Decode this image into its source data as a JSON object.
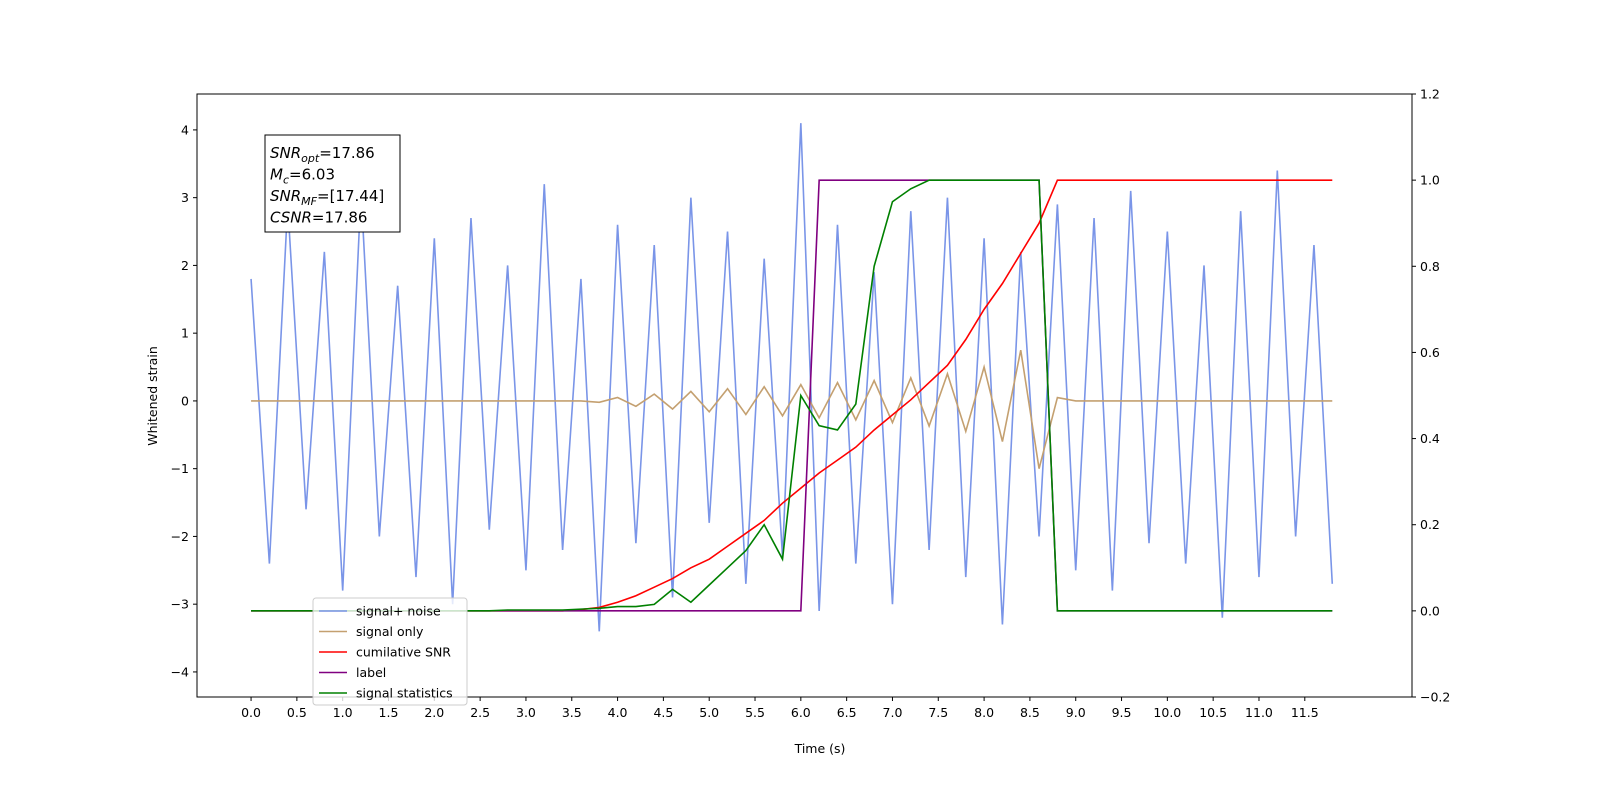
{
  "chart_data": {
    "type": "line",
    "xlabel": "Time (s)",
    "ylabel": "Whitened strain",
    "xlim": [
      -0.59,
      12.67
    ],
    "ylim": [
      -4.37,
      4.53
    ],
    "y2lim": [
      -0.2,
      1.2
    ],
    "xticks": [
      {
        "value": 0,
        "label": "0.0"
      },
      {
        "value": 0.5,
        "label": "0.5"
      },
      {
        "value": 1,
        "label": "1.0"
      },
      {
        "value": 1.5,
        "label": "1.5"
      },
      {
        "value": 2,
        "label": "2.0"
      },
      {
        "value": 2.5,
        "label": "2.5"
      },
      {
        "value": 3,
        "label": "3.0"
      },
      {
        "value": 3.5,
        "label": "3.5"
      },
      {
        "value": 4,
        "label": "4.0"
      },
      {
        "value": 4.5,
        "label": "4.5"
      },
      {
        "value": 5,
        "label": "5.0"
      },
      {
        "value": 5.5,
        "label": "5.5"
      },
      {
        "value": 6,
        "label": "6.0"
      },
      {
        "value": 6.5,
        "label": "6.5"
      },
      {
        "value": 7,
        "label": "7.0"
      },
      {
        "value": 7.5,
        "label": "7.5"
      },
      {
        "value": 8,
        "label": "8.0"
      },
      {
        "value": 8.5,
        "label": "8.5"
      },
      {
        "value": 9,
        "label": "9.0"
      },
      {
        "value": 9.5,
        "label": "9.5"
      },
      {
        "value": 10,
        "label": "10.0"
      },
      {
        "value": 10.5,
        "label": "10.5"
      },
      {
        "value": 11,
        "label": "11.0"
      },
      {
        "value": 11.5,
        "label": "11.5"
      }
    ],
    "yticks": [
      {
        "value": -4,
        "label": "−4"
      },
      {
        "value": -3,
        "label": "−3"
      },
      {
        "value": -2,
        "label": "−2"
      },
      {
        "value": -1,
        "label": "−1"
      },
      0,
      1,
      2,
      3,
      4
    ],
    "y2ticks": [
      {
        "value": -0.2,
        "label": "−0.2"
      },
      {
        "value": 0,
        "label": "0.0"
      },
      {
        "value": 0.2,
        "label": "0.2"
      },
      {
        "value": 0.4,
        "label": "0.4"
      },
      {
        "value": 0.6,
        "label": "0.6"
      },
      {
        "value": 0.8,
        "label": "0.8"
      },
      {
        "value": 1,
        "label": "1.0"
      },
      {
        "value": 1.2,
        "label": "1.2"
      }
    ],
    "legend": "lower left",
    "annotations": [
      {
        "symbol": "SNR",
        "sub": "opt",
        "text": "=17.86"
      },
      {
        "symbol": "M",
        "sub": "c",
        "text": "=6.03"
      },
      {
        "symbol": "SNR",
        "sub": "MF",
        "text": "=[17.44]"
      },
      {
        "symbol": "CSNR",
        "sub": "",
        "text": "=17.86"
      }
    ],
    "x": [
      0,
      0.2,
      0.4,
      0.6,
      0.8,
      1,
      1.2,
      1.4,
      1.6,
      1.8,
      2,
      2.2,
      2.4,
      2.6,
      2.8,
      3,
      3.2,
      3.4,
      3.6,
      3.8,
      4,
      4.2,
      4.4,
      4.6,
      4.8,
      5,
      5.2,
      5.4,
      5.6,
      5.8,
      6,
      6.2,
      6.4,
      6.6,
      6.8,
      7,
      7.2,
      7.4,
      7.6,
      7.8,
      8,
      8.2,
      8.4,
      8.6,
      8.8,
      9,
      9.2,
      9.4,
      9.6,
      9.8,
      10,
      10.2,
      10.4,
      10.6,
      10.8,
      11,
      11.2,
      11.4,
      11.6,
      11.8
    ],
    "series": [
      {
        "name": "signal+ noise",
        "color": "#7a95e8",
        "values": [
          1.8,
          -2.4,
          2.9,
          -1.6,
          2.2,
          -2.8,
          3.1,
          -2.0,
          1.7,
          -2.6,
          2.4,
          -3.0,
          2.7,
          -1.9,
          2.0,
          -2.5,
          3.2,
          -2.2,
          1.8,
          -3.4,
          2.6,
          -2.1,
          2.3,
          -2.9,
          3.0,
          -1.8,
          2.5,
          -2.7,
          2.1,
          -2.3,
          4.1,
          -3.1,
          2.6,
          -2.4,
          1.9,
          -3.0,
          2.8,
          -2.2,
          3.0,
          -2.6,
          2.4,
          -3.3,
          2.2,
          -2.0,
          2.9,
          -2.5,
          2.7,
          -2.8,
          3.1,
          -2.1,
          2.5,
          -2.4,
          2.0,
          -3.2,
          2.8,
          -2.6,
          3.4,
          -2.0,
          2.3,
          -2.7
        ]
      },
      {
        "name": "signal only",
        "color": "#c4a070",
        "values": [
          0,
          0,
          0,
          0,
          0,
          0,
          0,
          0,
          0,
          0,
          0,
          0,
          0,
          0,
          0,
          0,
          0,
          0,
          0,
          -0.02,
          0.05,
          -0.08,
          0.1,
          -0.12,
          0.14,
          -0.16,
          0.18,
          -0.2,
          0.21,
          -0.22,
          0.24,
          -0.25,
          0.27,
          -0.28,
          0.3,
          -0.32,
          0.34,
          -0.37,
          0.4,
          -0.45,
          0.5,
          -0.6,
          0.75,
          -1.0,
          0.05,
          0,
          0,
          0,
          0,
          0,
          0,
          0,
          0,
          0,
          0,
          0,
          0,
          0,
          0,
          0
        ]
      },
      {
        "name": "cumilative SNR",
        "color": "#ff0000",
        "axis": "y2",
        "values": [
          0,
          0,
          0,
          0,
          0,
          0,
          0,
          0,
          0,
          0,
          0,
          0,
          0,
          0,
          0,
          0,
          0,
          0,
          0.003,
          0.008,
          0.02,
          0.035,
          0.055,
          0.075,
          0.1,
          0.12,
          0.15,
          0.18,
          0.21,
          0.25,
          0.285,
          0.32,
          0.35,
          0.38,
          0.42,
          0.455,
          0.49,
          0.53,
          0.57,
          0.63,
          0.7,
          0.76,
          0.83,
          0.9,
          1,
          1,
          1,
          1,
          1,
          1,
          1,
          1,
          1,
          1,
          1,
          1,
          1,
          1,
          1,
          1
        ]
      },
      {
        "name": "label",
        "color": "#800080",
        "axis": "y2",
        "values": [
          0,
          0,
          0,
          0,
          0,
          0,
          0,
          0,
          0,
          0,
          0,
          0,
          0,
          0,
          0,
          0,
          0,
          0,
          0,
          0,
          0,
          0,
          0,
          0,
          0,
          0,
          0,
          0,
          0,
          0,
          0,
          1,
          1,
          1,
          1,
          1,
          1,
          1,
          1,
          1,
          1,
          1,
          1,
          1,
          0,
          0,
          0,
          0,
          0,
          0,
          0,
          0,
          0,
          0,
          0,
          0,
          0,
          0,
          0,
          0
        ]
      },
      {
        "name": "signal statistics",
        "color": "#008000",
        "axis": "y2",
        "values": [
          0,
          0,
          0,
          0,
          0,
          0,
          0,
          0,
          0,
          0,
          0,
          0,
          0,
          0,
          0.002,
          0.002,
          0.002,
          0.002,
          0.004,
          0.006,
          0.01,
          0.01,
          0.015,
          0.05,
          0.02,
          0.06,
          0.1,
          0.14,
          0.2,
          0.12,
          0.5,
          0.43,
          0.42,
          0.48,
          0.8,
          0.95,
          0.98,
          1,
          1,
          1,
          1,
          1,
          1,
          1,
          0,
          0,
          0,
          0,
          0,
          0,
          0,
          0,
          0,
          0,
          0,
          0,
          0,
          0,
          0,
          0
        ]
      }
    ]
  }
}
